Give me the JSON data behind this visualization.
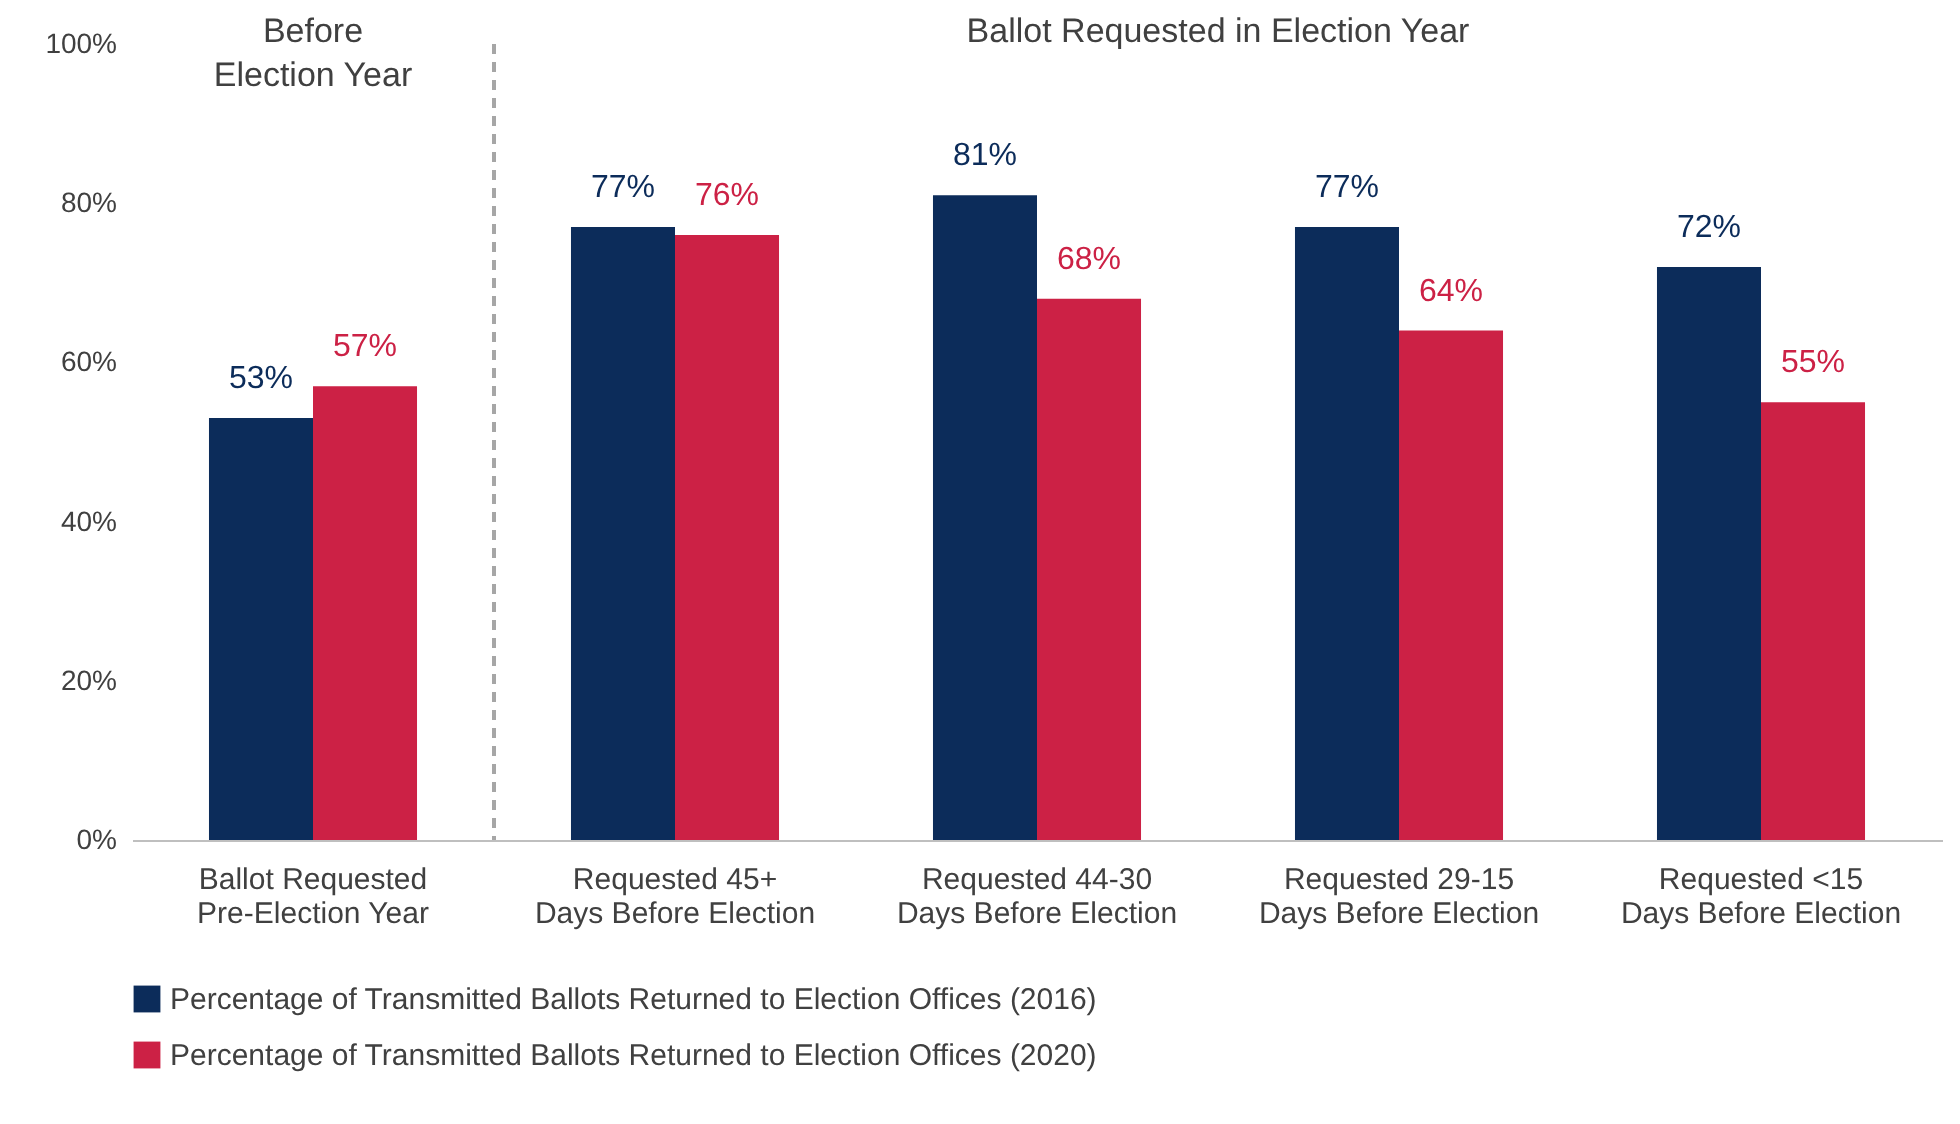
{
  "chart_data": {
    "type": "bar",
    "categories": [
      "Ballot Requested\nPre-Election Year",
      "Requested 45+\nDays Before Election",
      "Requested 44-30\nDays Before Election",
      "Requested 29-15\nDays Before Election",
      "Requested <15\nDays Before Election"
    ],
    "series": [
      {
        "name": "Percentage of Transmitted Ballots Returned to Election Offices (2016)",
        "color": "#0c2c5a",
        "values": [
          53,
          77,
          81,
          77,
          72
        ],
        "value_labels": [
          "53%",
          "77%",
          "81%",
          "77%",
          "72%"
        ]
      },
      {
        "name": "Percentage of Transmitted Ballots Returned to Election Offices (2020)",
        "color": "#cc2145",
        "values": [
          57,
          76,
          68,
          64,
          55
        ],
        "value_labels": [
          "57%",
          "76%",
          "68%",
          "64%",
          "55%"
        ]
      }
    ],
    "ylim": [
      0,
      100
    ],
    "yticks": [
      {
        "value": 0,
        "label": "0%"
      },
      {
        "value": 20,
        "label": "20%"
      },
      {
        "value": 40,
        "label": "40%"
      },
      {
        "value": 60,
        "label": "60%"
      },
      {
        "value": 80,
        "label": "80%"
      },
      {
        "value": 100,
        "label": "100%"
      }
    ],
    "grid": false,
    "legend": "bottom",
    "annotations": [
      "Before\nElection Year",
      "Ballot Requested in Election Year"
    ]
  }
}
